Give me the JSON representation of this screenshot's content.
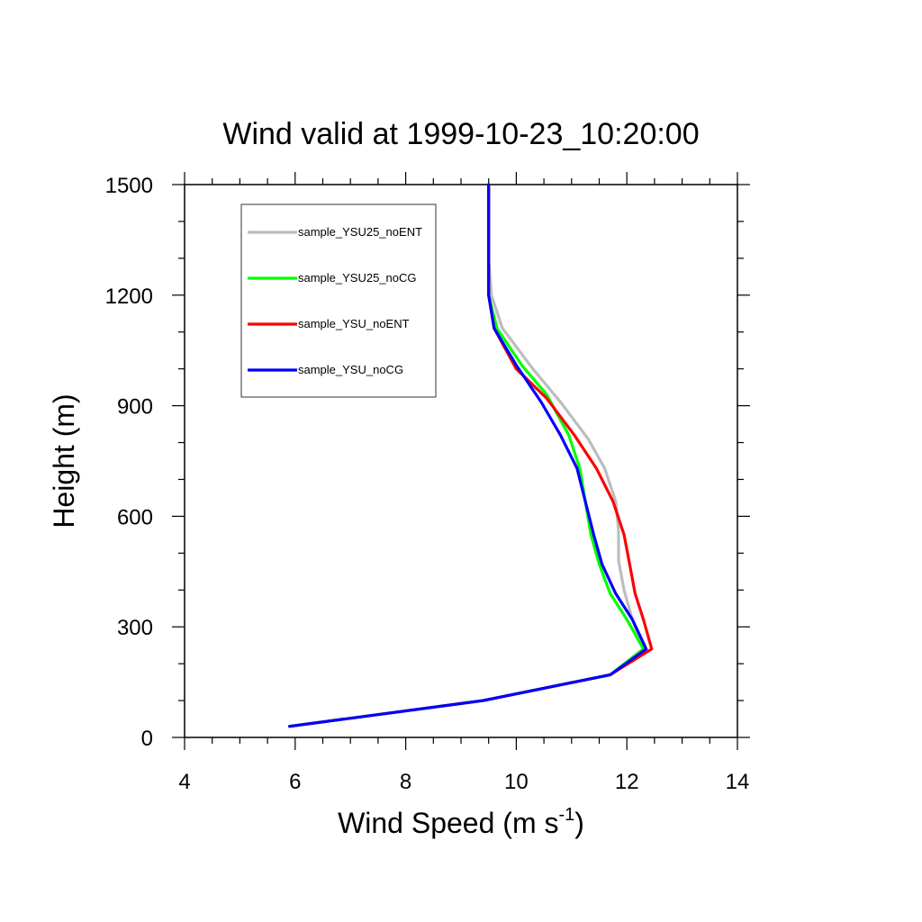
{
  "chart_data": {
    "type": "line",
    "title": "Wind valid at 1999-10-23_10:20:00",
    "xlabel": "Wind Speed (m s",
    "xlabel_sup": "-1",
    "xlabel_end": ")",
    "ylabel": "Height (m)",
    "xlim": [
      4,
      14
    ],
    "ylim": [
      0,
      1500
    ],
    "x_ticks": [
      4,
      6,
      8,
      10,
      12,
      14
    ],
    "y_ticks": [
      0,
      300,
      600,
      900,
      1200,
      1500
    ],
    "x_minor_step": 0.5,
    "y_minor_step": 100,
    "grid": false,
    "legend_position": "top-left",
    "series": [
      {
        "name": "sample_YSU25_noENT",
        "color": "#bdbdbd",
        "points": [
          [
            5.9,
            30
          ],
          [
            9.4,
            100
          ],
          [
            11.7,
            170
          ],
          [
            12.3,
            240
          ],
          [
            12.1,
            320
          ],
          [
            11.95,
            400
          ],
          [
            11.85,
            480
          ],
          [
            11.85,
            560
          ],
          [
            11.8,
            640
          ],
          [
            11.6,
            730
          ],
          [
            11.3,
            810
          ],
          [
            10.8,
            910
          ],
          [
            10.3,
            1000
          ],
          [
            9.75,
            1110
          ],
          [
            9.55,
            1200
          ],
          [
            9.5,
            1300
          ],
          [
            9.5,
            1400
          ],
          [
            9.5,
            1500
          ]
        ]
      },
      {
        "name": "sample_YSU25_noCG",
        "color": "#00ff00",
        "points": [
          [
            5.9,
            30
          ],
          [
            9.4,
            100
          ],
          [
            11.7,
            170
          ],
          [
            12.3,
            240
          ],
          [
            12.0,
            320
          ],
          [
            11.7,
            390
          ],
          [
            11.5,
            470
          ],
          [
            11.35,
            550
          ],
          [
            11.25,
            640
          ],
          [
            11.15,
            730
          ],
          [
            10.95,
            820
          ],
          [
            10.55,
            930
          ],
          [
            10.1,
            1010
          ],
          [
            9.65,
            1110
          ],
          [
            9.5,
            1200
          ],
          [
            9.5,
            1300
          ],
          [
            9.5,
            1400
          ],
          [
            9.5,
            1500
          ]
        ]
      },
      {
        "name": "sample_YSU_noENT",
        "color": "#ff0000",
        "points": [
          [
            5.9,
            30
          ],
          [
            9.4,
            100
          ],
          [
            11.7,
            170
          ],
          [
            12.45,
            240
          ],
          [
            12.3,
            320
          ],
          [
            12.15,
            390
          ],
          [
            12.05,
            470
          ],
          [
            11.95,
            550
          ],
          [
            11.75,
            640
          ],
          [
            11.45,
            730
          ],
          [
            11.05,
            820
          ],
          [
            10.55,
            920
          ],
          [
            10.0,
            1000
          ],
          [
            9.6,
            1110
          ],
          [
            9.5,
            1200
          ],
          [
            9.5,
            1300
          ],
          [
            9.5,
            1400
          ],
          [
            9.5,
            1500
          ]
        ]
      },
      {
        "name": "sample_YSU_noCG",
        "color": "#0000ff",
        "points": [
          [
            5.9,
            30
          ],
          [
            9.4,
            100
          ],
          [
            11.7,
            170
          ],
          [
            12.35,
            240
          ],
          [
            12.1,
            320
          ],
          [
            11.8,
            390
          ],
          [
            11.55,
            470
          ],
          [
            11.4,
            550
          ],
          [
            11.25,
            640
          ],
          [
            11.1,
            730
          ],
          [
            10.8,
            820
          ],
          [
            10.45,
            910
          ],
          [
            10.0,
            1010
          ],
          [
            9.6,
            1110
          ],
          [
            9.5,
            1200
          ],
          [
            9.5,
            1300
          ],
          [
            9.5,
            1400
          ],
          [
            9.5,
            1500
          ]
        ]
      }
    ]
  }
}
